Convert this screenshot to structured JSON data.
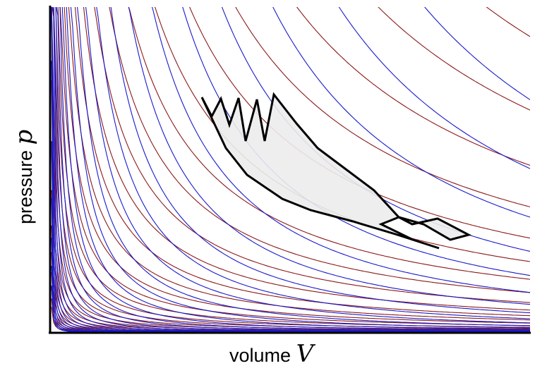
{
  "axes": {
    "x_label": "volume",
    "x_symbol": "V",
    "y_label": "pressure",
    "y_symbol": "p"
  },
  "colors": {
    "isotherm": "#8b1a1a",
    "adiabat": "#1a1acc",
    "cycle_outline": "#000000",
    "cycle_fill": "#ececec"
  },
  "curve_families": [
    "isotherms",
    "adiabats"
  ]
}
